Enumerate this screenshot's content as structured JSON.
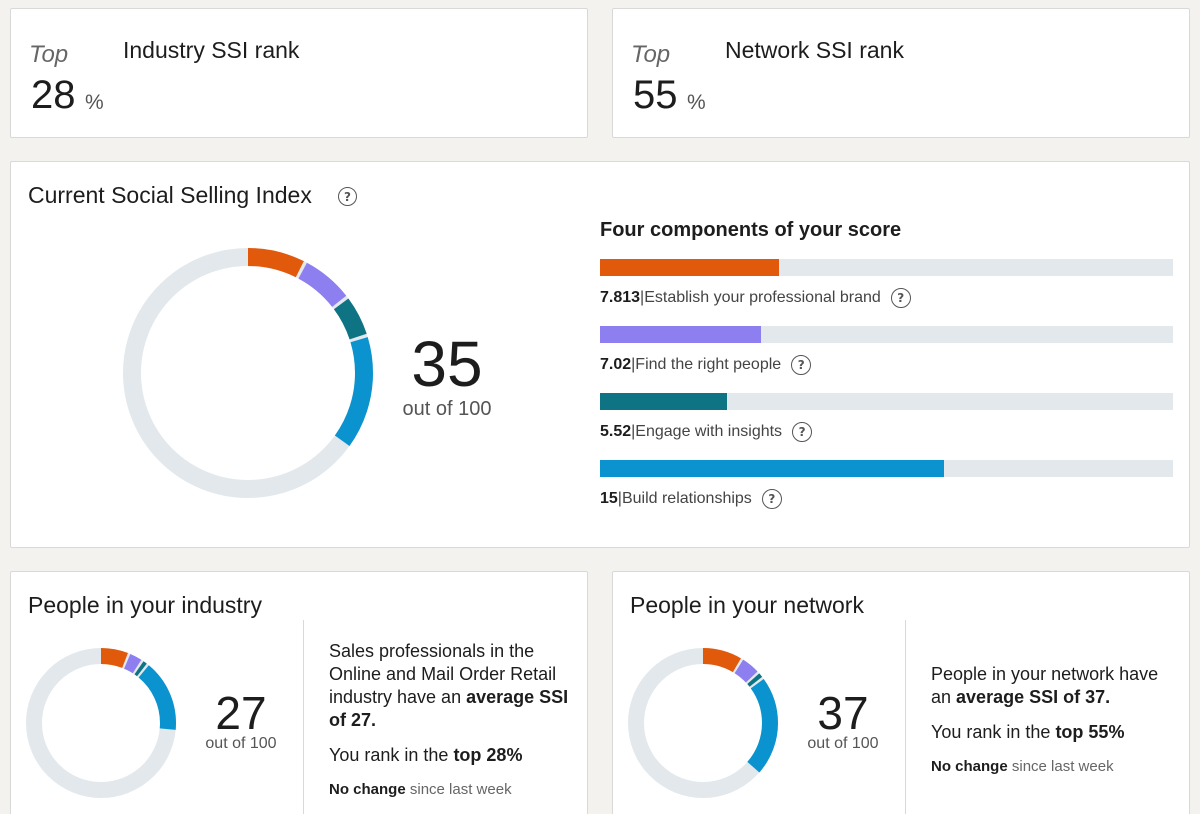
{
  "rank_cards": {
    "industry": {
      "top_label": "Top",
      "title": "Industry SSI rank",
      "value": "28",
      "unit": "%"
    },
    "network": {
      "top_label": "Top",
      "title": "Network SSI rank",
      "value": "55",
      "unit": "%"
    }
  },
  "ssi": {
    "title": "Current Social Selling Index",
    "help_icon": "question-circle-icon",
    "score": "35",
    "out_of": "out of 100",
    "total": 35,
    "components_heading": "Four components of your score",
    "components": [
      {
        "value": "7.813",
        "sep": " | ",
        "label": "Establish your professional brand",
        "score": 7.813,
        "max": 25,
        "color": "#e1590b"
      },
      {
        "value": "7.02",
        "sep": " | ",
        "label": "Find the right people",
        "score": 7.02,
        "max": 25,
        "color": "#8d7ff0"
      },
      {
        "value": "5.52",
        "sep": " | ",
        "label": "Engage with insights",
        "score": 5.52,
        "max": 25,
        "color": "#0e7383"
      },
      {
        "value": "15",
        "sep": " | ",
        "label": "Build relationships",
        "score": 15,
        "max": 25,
        "color": "#0a93cf"
      }
    ]
  },
  "people_industry": {
    "title": "People in your industry",
    "score": "27",
    "out_of": "out of 100",
    "segments": [
      6.4,
      3.2,
      1.4,
      16.0
    ],
    "desc_part1": "Sales professionals in the Online and Mail Order Retail industry have an ",
    "desc_bold": "average SSI of 27.",
    "rank_prefix": "You rank in the ",
    "rank_bold": "top 28%",
    "change_bold": "No change",
    "change_rest": " since last week"
  },
  "people_network": {
    "title": "People in your network",
    "score": "37",
    "out_of": "out of 100",
    "segments": [
      9.0,
      4.5,
      1.5,
      22.0
    ],
    "desc_part1": "People in your network have an ",
    "desc_bold": "average SSI of 37.",
    "rank_prefix": "You rank in the ",
    "rank_bold": "top 55%",
    "change_bold": "No change",
    "change_rest": " since last week"
  },
  "colors": {
    "brand": "#e1590b",
    "people": "#8d7ff0",
    "insights": "#0e7383",
    "relationships": "#0a93cf",
    "track": "#e2e8ec"
  }
}
